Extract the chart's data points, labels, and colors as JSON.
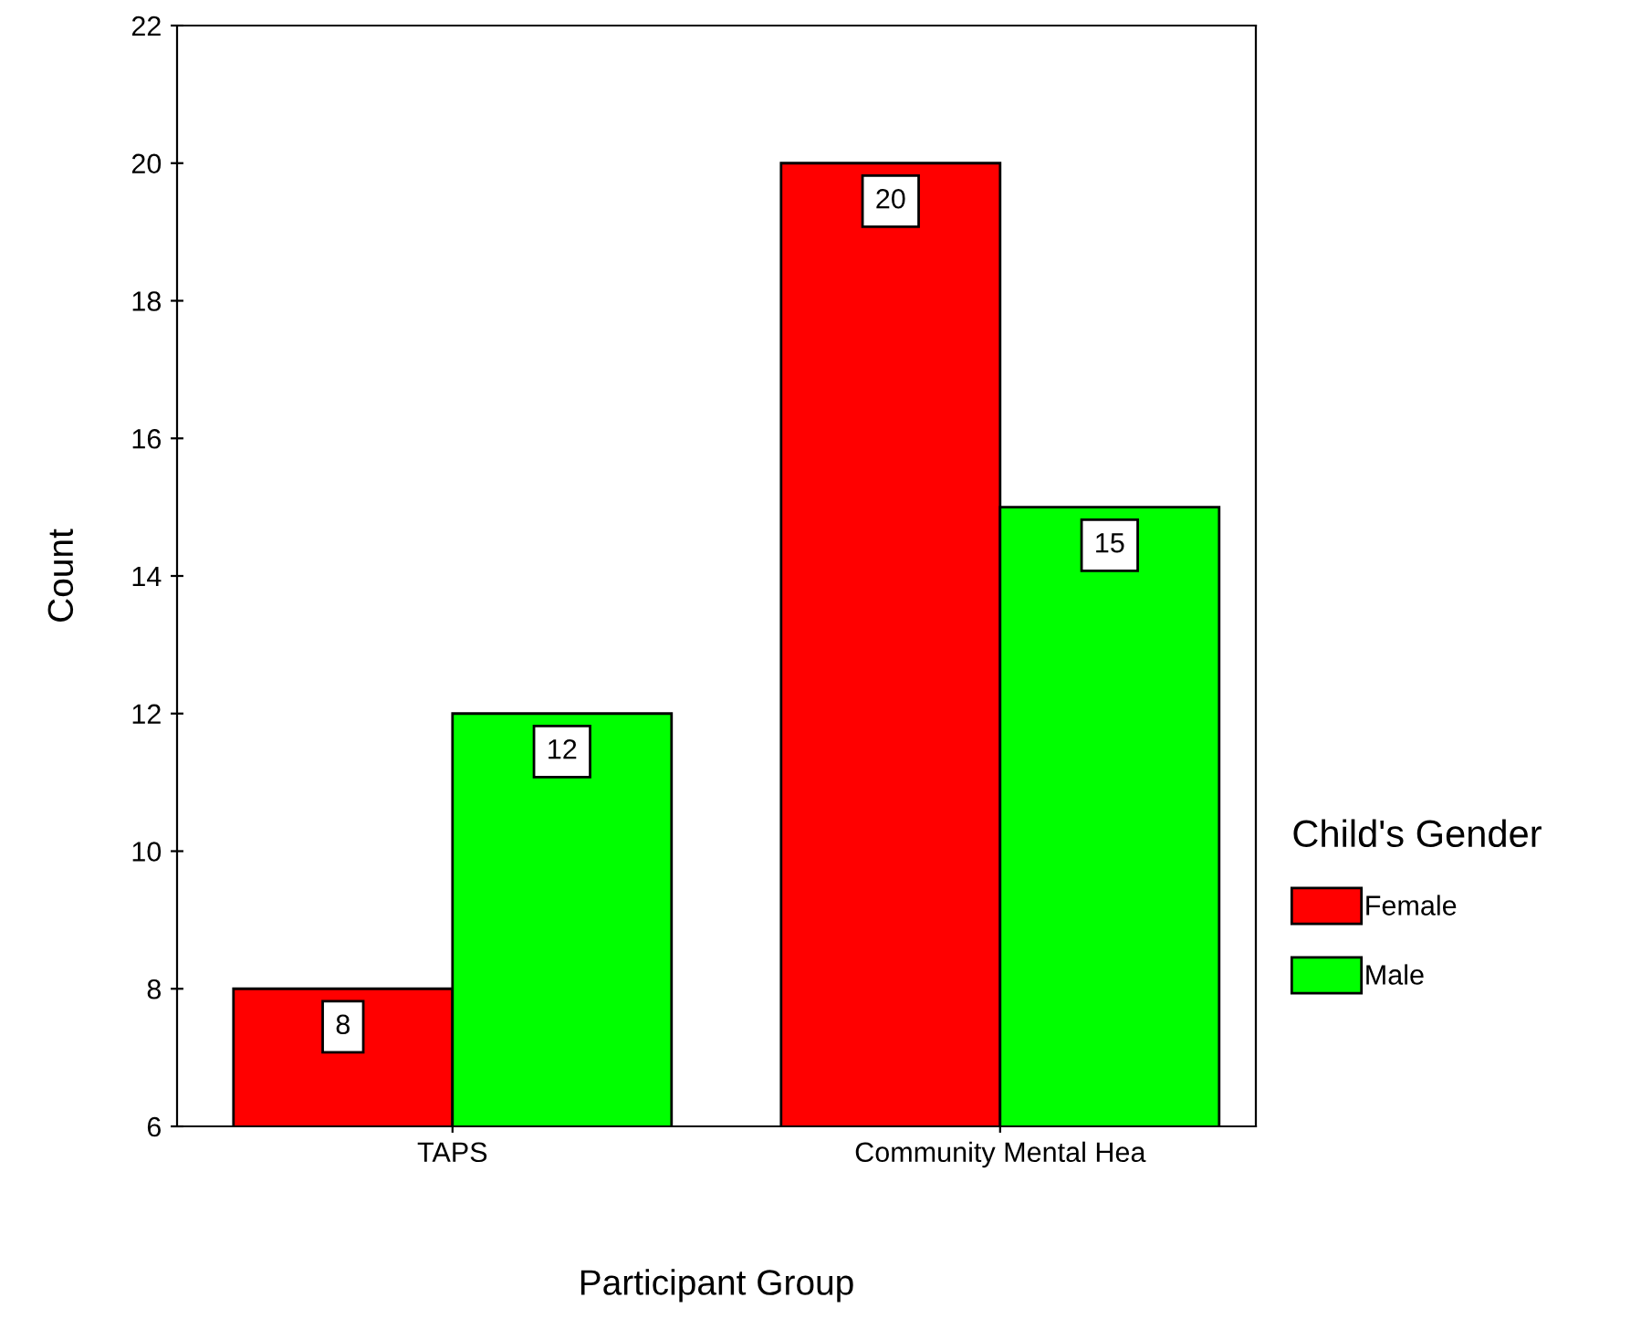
{
  "chart_data": {
    "type": "bar",
    "xlabel": "Participant Group",
    "ylabel": "Count",
    "legend_title": "Child's Gender",
    "categories": [
      "TAPS",
      "Community Mental Hea"
    ],
    "series": [
      {
        "name": "Female",
        "color": "#ff0000",
        "values": [
          8,
          20
        ]
      },
      {
        "name": "Male",
        "color": "#00ff00",
        "values": [
          12,
          15
        ]
      }
    ],
    "ylim": [
      6,
      22
    ],
    "yticks": [
      6,
      8,
      10,
      12,
      14,
      16,
      18,
      20,
      22
    ],
    "grid": false,
    "legend": "right",
    "data_labels": true
  }
}
